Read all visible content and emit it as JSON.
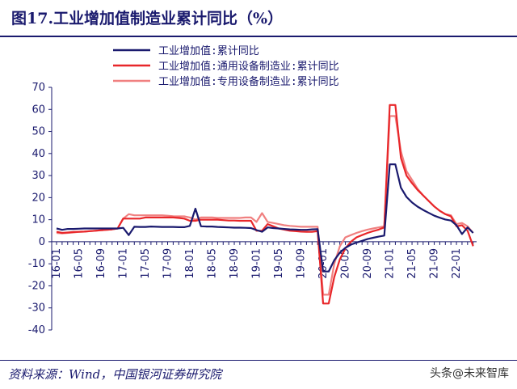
{
  "figure": {
    "title": "图17.工业增加值制造业累计同比（%）",
    "source": "资料来源：Wind，中国银河证券研究院",
    "watermark": "头条@未来智库"
  },
  "chart_data": {
    "type": "line",
    "title": "",
    "xlabel": "",
    "ylabel": "",
    "ylim": [
      -40,
      70
    ],
    "yticks": [
      70,
      60,
      50,
      40,
      30,
      20,
      10,
      0,
      -10,
      -20,
      -30,
      -40
    ],
    "xtick_labels": [
      "16-01",
      "16-05",
      "16-09",
      "17-01",
      "17-05",
      "17-09",
      "18-01",
      "18-05",
      "18-09",
      "19-01",
      "19-05",
      "19-09",
      "20-01",
      "20-05",
      "20-09",
      "21-01",
      "21-05",
      "21-09",
      "22-01"
    ],
    "legend_position": "top",
    "grid": false,
    "x": [
      "16-01",
      "16-02",
      "16-03",
      "16-04",
      "16-05",
      "16-06",
      "16-07",
      "16-08",
      "16-09",
      "16-10",
      "16-11",
      "16-12",
      "17-01",
      "17-02",
      "17-03",
      "17-04",
      "17-05",
      "17-06",
      "17-07",
      "17-08",
      "17-09",
      "17-10",
      "17-11",
      "17-12",
      "18-01",
      "18-02",
      "18-03",
      "18-04",
      "18-05",
      "18-06",
      "18-07",
      "18-08",
      "18-09",
      "18-10",
      "18-11",
      "18-12",
      "19-01",
      "19-02",
      "19-03",
      "19-04",
      "19-05",
      "19-06",
      "19-07",
      "19-08",
      "19-09",
      "19-10",
      "19-11",
      "19-12",
      "20-01",
      "20-02",
      "20-03",
      "20-04",
      "20-05",
      "20-06",
      "20-07",
      "20-08",
      "20-09",
      "20-10",
      "20-11",
      "20-12",
      "21-01",
      "21-02",
      "21-03",
      "21-04",
      "21-05",
      "21-06",
      "21-07",
      "21-08",
      "21-09",
      "21-10",
      "21-11",
      "21-12",
      "22-01",
      "22-02",
      "22-03",
      "22-04"
    ],
    "series": [
      {
        "name": "工业增加值:累计同比",
        "color": "#1a1a6e",
        "values": [
          6.0,
          5.4,
          5.8,
          5.8,
          5.9,
          6.0,
          6.0,
          6.0,
          6.0,
          6.0,
          6.0,
          6.0,
          6.3,
          3.0,
          6.8,
          6.7,
          6.7,
          6.9,
          6.8,
          6.7,
          6.7,
          6.7,
          6.6,
          6.6,
          7.2,
          15.0,
          7.0,
          6.9,
          6.9,
          6.7,
          6.6,
          6.5,
          6.4,
          6.4,
          6.3,
          6.2,
          5.3,
          4.5,
          6.5,
          6.2,
          6.0,
          5.8,
          5.6,
          5.5,
          5.4,
          5.4,
          5.6,
          5.7,
          -13.5,
          -13.5,
          -8.4,
          -4.9,
          -2.8,
          -1.3,
          -0.4,
          0.4,
          1.2,
          1.8,
          2.3,
          2.8,
          35.1,
          35.1,
          24.5,
          20.3,
          17.8,
          15.9,
          14.4,
          13.1,
          11.8,
          10.9,
          10.1,
          9.6,
          7.5,
          3.5,
          6.5,
          4.0
        ]
      },
      {
        "name": "工业增加值:通用设备制造业:累计同比",
        "color": "#e8272a",
        "values": [
          4.5,
          4.0,
          4.2,
          4.4,
          4.5,
          4.6,
          4.8,
          5.0,
          5.2,
          5.4,
          5.6,
          6.0,
          10.5,
          10.5,
          10.5,
          10.5,
          11.0,
          11.0,
          11.0,
          11.0,
          11.0,
          11.0,
          10.8,
          10.5,
          9.5,
          9.5,
          10.0,
          10.0,
          10.0,
          10.0,
          9.8,
          9.6,
          9.6,
          9.5,
          9.5,
          9.5,
          5.0,
          5.0,
          8.0,
          7.0,
          6.0,
          5.5,
          5.0,
          4.8,
          4.6,
          4.5,
          4.5,
          4.8,
          -28.0,
          -28.0,
          -16.0,
          -8.0,
          -3.0,
          0.0,
          2.0,
          3.0,
          4.0,
          4.8,
          5.5,
          6.5,
          62.0,
          62.0,
          38.0,
          30.0,
          26.5,
          23.5,
          21.0,
          18.5,
          16.0,
          14.0,
          12.5,
          11.5,
          7.0,
          7.5,
          5.0,
          -2.0
        ]
      },
      {
        "name": "工业增加值:专用设备制造业:累计同比",
        "color": "#f08080",
        "values": [
          4.0,
          3.8,
          4.0,
          4.2,
          4.5,
          4.6,
          4.8,
          5.0,
          5.2,
          5.4,
          5.6,
          6.0,
          10.5,
          12.5,
          12.0,
          12.0,
          12.0,
          12.0,
          12.0,
          12.0,
          11.8,
          11.6,
          11.5,
          11.5,
          11.0,
          10.0,
          11.0,
          11.0,
          11.0,
          10.8,
          10.8,
          10.8,
          10.8,
          10.8,
          11.0,
          11.0,
          9.0,
          13.0,
          9.0,
          8.5,
          8.0,
          7.5,
          7.2,
          7.0,
          6.8,
          6.8,
          6.8,
          6.8,
          -24.0,
          -24.0,
          -10.0,
          -2.0,
          2.0,
          3.0,
          4.0,
          4.8,
          5.5,
          6.0,
          6.5,
          7.0,
          57.0,
          57.0,
          41.0,
          32.0,
          28.0,
          24.0,
          21.0,
          18.5,
          16.0,
          14.0,
          12.5,
          12.0,
          8.0,
          8.5,
          7.0,
          4.0
        ]
      }
    ]
  }
}
